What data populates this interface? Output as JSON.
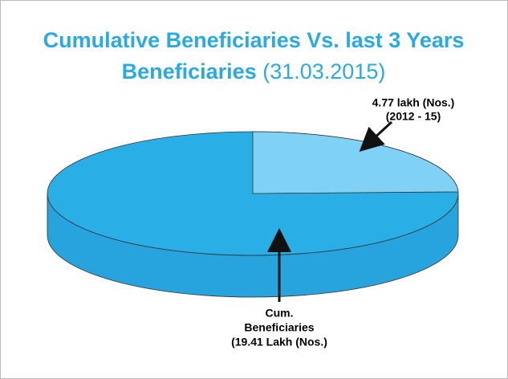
{
  "chart_data": {
    "type": "pie",
    "title_lines": [
      "Cumulative Beneficiaries Vs. last 3 Years",
      "Beneficiaries"
    ],
    "subtitle": "(31.03.2015)",
    "categories": [
      "2012 - 15",
      "Cum. Beneficiaries"
    ],
    "values": [
      4.77,
      19.41
    ],
    "colors": [
      "#80d1f6",
      "#29aee6"
    ],
    "slice_labels": [
      [
        "4.77 lakh (Nos.)",
        "(2012 - 15)"
      ],
      [
        "Cum.",
        "Beneficiaries",
        "(19.41 Lakh (Nos.)"
      ]
    ]
  }
}
